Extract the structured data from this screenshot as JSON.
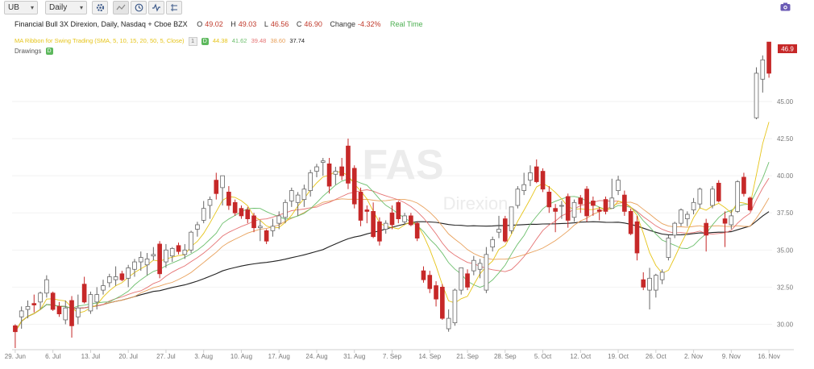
{
  "toolbar": {
    "symbol_input": "UB",
    "interval": "Daily"
  },
  "header": {
    "name": "Financial Bull 3X Direxion, Daily, Nasdaq + Cboe BZX",
    "o_label": "O",
    "o_value": "49.02",
    "h_label": "H",
    "h_value": "49.03",
    "l_label": "L",
    "l_value": "46.56",
    "c_label": "C",
    "c_value": "46.90",
    "change_label": "Change",
    "change_value": "-4.32%",
    "realtime": "Real Time"
  },
  "indicator": {
    "name": "MA Ribbon for Swing Trading (SMA, 5, 10, 15, 20, 50, 5, Close)",
    "badge_gray": "1",
    "badge_green": "D",
    "values": [
      "44.38",
      "41.62",
      "39.48",
      "38.60",
      "37.74"
    ],
    "value_colors": [
      "#e6c419",
      "#6dbf6d",
      "#e57373",
      "#e8a05a",
      "#222222"
    ]
  },
  "drawings": {
    "label": "Drawings",
    "badge": "D"
  },
  "watermark": {
    "line1": "FAS",
    "line2": "Direxion"
  },
  "last_price_label": "46.9",
  "bottom_caption": "",
  "colors": {
    "up": "#ffffff",
    "down": "#c62828",
    "neutral": "#7f7f7f",
    "ma5": "#e6c419",
    "ma10": "#6dbf6d",
    "ma15": "#e57373",
    "ma20": "#e8a05a",
    "ma50": "#222222"
  },
  "chart_data": {
    "type": "candlestick",
    "y_ticks": [
      "30.00",
      "32.50",
      "35.00",
      "37.50",
      "40.00",
      "42.50",
      "45.00"
    ],
    "ylim": [
      28.4,
      47.6
    ],
    "x_ticks": [
      "29. Jun",
      "6. Jul",
      "13. Jul",
      "20. Jul",
      "27. Jul",
      "3. Aug",
      "10. Aug",
      "17. Aug",
      "24. Aug",
      "31. Aug",
      "7. Sep",
      "14. Sep",
      "21. Sep",
      "28. Sep",
      "5. Oct",
      "12. Oct",
      "19. Oct",
      "26. Oct",
      "2. Nov",
      "9. Nov",
      "16. Nov"
    ],
    "candles": [
      {
        "o": 29.9,
        "h": 30.0,
        "l": 28.4,
        "c": 29.5
      },
      {
        "o": 30.5,
        "h": 31.2,
        "l": 29.7,
        "c": 30.9
      },
      {
        "o": 31.0,
        "h": 31.6,
        "l": 30.4,
        "c": 31.2
      },
      {
        "o": 31.4,
        "h": 32.0,
        "l": 30.8,
        "c": 31.3
      },
      {
        "o": 31.5,
        "h": 32.2,
        "l": 31.0,
        "c": 32.1
      },
      {
        "o": 32.1,
        "h": 33.3,
        "l": 31.8,
        "c": 33.0
      },
      {
        "o": 32.1,
        "h": 32.2,
        "l": 30.9,
        "c": 31.0
      },
      {
        "o": 31.2,
        "h": 31.5,
        "l": 30.5,
        "c": 30.7
      },
      {
        "o": 30.3,
        "h": 31.6,
        "l": 30.0,
        "c": 31.1
      },
      {
        "o": 31.6,
        "h": 31.9,
        "l": 29.1,
        "c": 29.9
      },
      {
        "o": 30.5,
        "h": 32.0,
        "l": 30.0,
        "c": 31.1
      },
      {
        "o": 32.7,
        "h": 33.2,
        "l": 31.4,
        "c": 31.5
      },
      {
        "o": 30.9,
        "h": 32.2,
        "l": 30.7,
        "c": 32.0
      },
      {
        "o": 31.5,
        "h": 32.5,
        "l": 31.0,
        "c": 32.0
      },
      {
        "o": 32.3,
        "h": 33.0,
        "l": 32.0,
        "c": 32.6
      },
      {
        "o": 32.8,
        "h": 33.4,
        "l": 32.5,
        "c": 33.2
      },
      {
        "o": 33.0,
        "h": 33.9,
        "l": 32.6,
        "c": 33.2
      },
      {
        "o": 33.4,
        "h": 33.6,
        "l": 32.9,
        "c": 33.0
      },
      {
        "o": 33.1,
        "h": 34.0,
        "l": 32.5,
        "c": 33.8
      },
      {
        "o": 33.7,
        "h": 34.4,
        "l": 33.2,
        "c": 34.2
      },
      {
        "o": 34.2,
        "h": 34.9,
        "l": 33.6,
        "c": 34.5
      },
      {
        "o": 34.0,
        "h": 34.8,
        "l": 33.3,
        "c": 34.4
      },
      {
        "o": 34.6,
        "h": 35.2,
        "l": 34.3,
        "c": 34.7
      },
      {
        "o": 35.4,
        "h": 35.6,
        "l": 33.1,
        "c": 33.4
      },
      {
        "o": 34.2,
        "h": 35.4,
        "l": 33.8,
        "c": 35.0
      },
      {
        "o": 34.6,
        "h": 35.2,
        "l": 34.2,
        "c": 35.1
      },
      {
        "o": 35.3,
        "h": 35.5,
        "l": 34.7,
        "c": 34.9
      },
      {
        "o": 34.7,
        "h": 35.4,
        "l": 34.4,
        "c": 35.0
      },
      {
        "o": 35.0,
        "h": 36.3,
        "l": 34.8,
        "c": 36.2
      },
      {
        "o": 36.4,
        "h": 36.9,
        "l": 35.9,
        "c": 36.7
      },
      {
        "o": 37.0,
        "h": 38.3,
        "l": 36.8,
        "c": 37.8
      },
      {
        "o": 38.0,
        "h": 38.6,
        "l": 37.1,
        "c": 38.4
      },
      {
        "o": 39.7,
        "h": 40.2,
        "l": 38.4,
        "c": 38.8
      },
      {
        "o": 39.2,
        "h": 40.0,
        "l": 38.0,
        "c": 40.0
      },
      {
        "o": 38.9,
        "h": 39.3,
        "l": 37.7,
        "c": 38.0
      },
      {
        "o": 38.2,
        "h": 38.4,
        "l": 37.3,
        "c": 37.5
      },
      {
        "o": 37.8,
        "h": 38.0,
        "l": 37.1,
        "c": 37.3
      },
      {
        "o": 37.7,
        "h": 37.9,
        "l": 36.8,
        "c": 37.1
      },
      {
        "o": 37.3,
        "h": 37.5,
        "l": 36.2,
        "c": 36.5
      },
      {
        "o": 36.5,
        "h": 37.0,
        "l": 35.6,
        "c": 36.6
      },
      {
        "o": 36.3,
        "h": 36.4,
        "l": 35.4,
        "c": 35.6
      },
      {
        "o": 36.3,
        "h": 37.1,
        "l": 35.9,
        "c": 36.6
      },
      {
        "o": 36.8,
        "h": 37.6,
        "l": 36.4,
        "c": 37.3
      },
      {
        "o": 37.2,
        "h": 38.4,
        "l": 36.8,
        "c": 38.2
      },
      {
        "o": 38.3,
        "h": 39.2,
        "l": 37.9,
        "c": 39.0
      },
      {
        "o": 38.2,
        "h": 38.9,
        "l": 37.3,
        "c": 38.7
      },
      {
        "o": 38.4,
        "h": 39.4,
        "l": 37.9,
        "c": 39.1
      },
      {
        "o": 39.0,
        "h": 40.4,
        "l": 38.6,
        "c": 40.2
      },
      {
        "o": 40.3,
        "h": 40.8,
        "l": 39.9,
        "c": 40.6
      },
      {
        "o": 40.9,
        "h": 41.2,
        "l": 40.0,
        "c": 41.0
      },
      {
        "o": 40.8,
        "h": 41.2,
        "l": 38.8,
        "c": 39.3
      },
      {
        "o": 40.1,
        "h": 40.6,
        "l": 39.4,
        "c": 40.3
      },
      {
        "o": 40.6,
        "h": 41.2,
        "l": 39.7,
        "c": 40.0
      },
      {
        "o": 42.0,
        "h": 42.5,
        "l": 39.1,
        "c": 39.5
      },
      {
        "o": 40.5,
        "h": 40.7,
        "l": 37.8,
        "c": 38.1
      },
      {
        "o": 38.9,
        "h": 39.2,
        "l": 36.6,
        "c": 37.0
      },
      {
        "o": 37.7,
        "h": 38.0,
        "l": 36.8,
        "c": 37.6
      },
      {
        "o": 37.6,
        "h": 38.2,
        "l": 35.8,
        "c": 35.9
      },
      {
        "o": 36.9,
        "h": 37.2,
        "l": 35.3,
        "c": 35.6
      },
      {
        "o": 36.4,
        "h": 37.0,
        "l": 36.1,
        "c": 36.8
      },
      {
        "o": 37.5,
        "h": 38.0,
        "l": 36.4,
        "c": 36.7
      },
      {
        "o": 38.2,
        "h": 38.3,
        "l": 36.8,
        "c": 37.1
      },
      {
        "o": 36.9,
        "h": 37.5,
        "l": 36.7,
        "c": 37.3
      },
      {
        "o": 37.3,
        "h": 37.5,
        "l": 36.6,
        "c": 36.7
      },
      {
        "o": 36.8,
        "h": 36.9,
        "l": 35.6,
        "c": 35.8
      },
      {
        "o": 33.6,
        "h": 33.9,
        "l": 32.8,
        "c": 33.0
      },
      {
        "o": 33.3,
        "h": 33.6,
        "l": 32.1,
        "c": 32.4
      },
      {
        "o": 32.6,
        "h": 32.9,
        "l": 31.2,
        "c": 31.7
      },
      {
        "o": 32.5,
        "h": 32.7,
        "l": 30.3,
        "c": 30.4
      },
      {
        "o": 29.7,
        "h": 31.0,
        "l": 29.5,
        "c": 30.4
      },
      {
        "o": 30.1,
        "h": 32.4,
        "l": 29.9,
        "c": 32.3
      },
      {
        "o": 32.3,
        "h": 33.8,
        "l": 32.0,
        "c": 33.8
      },
      {
        "o": 33.4,
        "h": 33.7,
        "l": 32.3,
        "c": 32.5
      },
      {
        "o": 33.6,
        "h": 34.6,
        "l": 33.3,
        "c": 34.3
      },
      {
        "o": 33.7,
        "h": 34.4,
        "l": 33.1,
        "c": 34.1
      },
      {
        "o": 32.3,
        "h": 35.2,
        "l": 32.1,
        "c": 34.7
      },
      {
        "o": 35.2,
        "h": 35.9,
        "l": 34.9,
        "c": 35.7
      },
      {
        "o": 36.2,
        "h": 37.3,
        "l": 35.8,
        "c": 36.4
      },
      {
        "o": 37.1,
        "h": 37.3,
        "l": 35.5,
        "c": 35.6
      },
      {
        "o": 36.3,
        "h": 37.9,
        "l": 36.1,
        "c": 37.9
      },
      {
        "o": 38.0,
        "h": 39.3,
        "l": 37.8,
        "c": 39.1
      },
      {
        "o": 39.0,
        "h": 40.2,
        "l": 38.7,
        "c": 39.4
      },
      {
        "o": 39.7,
        "h": 40.7,
        "l": 39.3,
        "c": 40.2
      },
      {
        "o": 40.6,
        "h": 41.1,
        "l": 39.5,
        "c": 39.6
      },
      {
        "o": 40.3,
        "h": 40.5,
        "l": 38.9,
        "c": 39.1
      },
      {
        "o": 38.9,
        "h": 39.3,
        "l": 37.5,
        "c": 37.9
      },
      {
        "o": 37.8,
        "h": 38.1,
        "l": 36.2,
        "c": 37.6
      },
      {
        "o": 38.0,
        "h": 38.3,
        "l": 37.1,
        "c": 38.0
      },
      {
        "o": 38.6,
        "h": 38.8,
        "l": 36.5,
        "c": 37.0
      },
      {
        "o": 37.2,
        "h": 38.4,
        "l": 36.9,
        "c": 38.2
      },
      {
        "o": 38.5,
        "h": 38.7,
        "l": 37.5,
        "c": 38.1
      },
      {
        "o": 39.1,
        "h": 39.3,
        "l": 36.9,
        "c": 37.3
      },
      {
        "o": 38.3,
        "h": 38.6,
        "l": 37.3,
        "c": 38.0
      },
      {
        "o": 37.7,
        "h": 37.9,
        "l": 37.0,
        "c": 37.6
      },
      {
        "o": 38.4,
        "h": 38.6,
        "l": 37.4,
        "c": 37.6
      },
      {
        "o": 37.8,
        "h": 39.8,
        "l": 37.8,
        "c": 38.5
      },
      {
        "o": 39.0,
        "h": 40.0,
        "l": 38.7,
        "c": 39.7
      },
      {
        "o": 38.7,
        "h": 39.0,
        "l": 37.3,
        "c": 37.6
      },
      {
        "o": 37.6,
        "h": 37.8,
        "l": 36.0,
        "c": 36.1
      },
      {
        "o": 36.9,
        "h": 37.3,
        "l": 34.3,
        "c": 34.8
      },
      {
        "o": 33.0,
        "h": 33.5,
        "l": 32.3,
        "c": 32.5
      },
      {
        "o": 32.3,
        "h": 33.8,
        "l": 31.0,
        "c": 33.1
      },
      {
        "o": 32.3,
        "h": 33.4,
        "l": 31.8,
        "c": 33.3
      },
      {
        "o": 33.0,
        "h": 33.7,
        "l": 32.7,
        "c": 33.5
      },
      {
        "o": 34.5,
        "h": 36.0,
        "l": 34.3,
        "c": 35.8
      },
      {
        "o": 36.0,
        "h": 36.9,
        "l": 35.8,
        "c": 36.8
      },
      {
        "o": 36.8,
        "h": 37.8,
        "l": 36.6,
        "c": 37.7
      },
      {
        "o": 37.1,
        "h": 37.6,
        "l": 36.6,
        "c": 37.4
      },
      {
        "o": 37.7,
        "h": 38.5,
        "l": 37.4,
        "c": 38.2
      },
      {
        "o": 38.1,
        "h": 39.2,
        "l": 37.8,
        "c": 39.1
      },
      {
        "o": 36.8,
        "h": 37.1,
        "l": 34.9,
        "c": 36.0
      },
      {
        "o": 38.0,
        "h": 39.3,
        "l": 37.8,
        "c": 39.1
      },
      {
        "o": 39.5,
        "h": 39.7,
        "l": 38.2,
        "c": 38.3
      },
      {
        "o": 37.1,
        "h": 37.6,
        "l": 35.2,
        "c": 36.8
      },
      {
        "o": 36.7,
        "h": 37.7,
        "l": 36.4,
        "c": 37.3
      },
      {
        "o": 37.6,
        "h": 39.7,
        "l": 37.5,
        "c": 39.6
      },
      {
        "o": 39.9,
        "h": 40.2,
        "l": 38.6,
        "c": 38.8
      },
      {
        "o": 38.5,
        "h": 38.6,
        "l": 37.6,
        "c": 37.7
      },
      {
        "o": 43.9,
        "h": 47.3,
        "l": 43.8,
        "c": 46.9
      },
      {
        "o": 46.5,
        "h": 48.1,
        "l": 45.6,
        "c": 47.8
      },
      {
        "o": 49.0,
        "h": 49.0,
        "l": 46.6,
        "c": 46.9
      }
    ]
  }
}
